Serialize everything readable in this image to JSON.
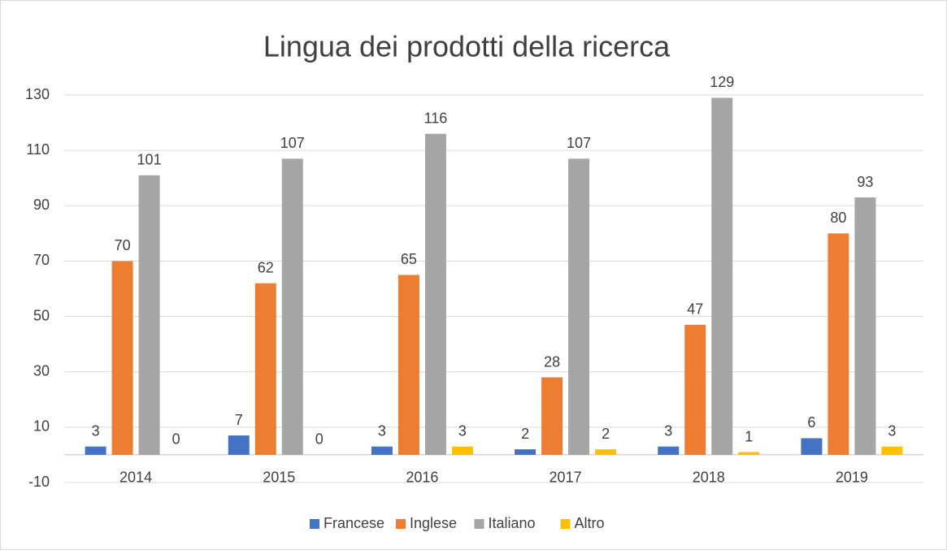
{
  "chart_data": {
    "type": "bar",
    "title": "Lingua dei prodotti della ricerca",
    "categories": [
      "2014",
      "2015",
      "2016",
      "2017",
      "2018",
      "2019"
    ],
    "series": [
      {
        "name": "Francese",
        "color": "#4472c4",
        "values": [
          3,
          7,
          3,
          2,
          3,
          6
        ]
      },
      {
        "name": "Inglese",
        "color": "#ed7d31",
        "values": [
          70,
          62,
          65,
          28,
          47,
          80
        ]
      },
      {
        "name": "Italiano",
        "color": "#a5a5a5",
        "values": [
          101,
          107,
          116,
          107,
          129,
          93
        ]
      },
      {
        "name": "Altro",
        "color": "#ffc000",
        "values": [
          0,
          0,
          3,
          2,
          1,
          3
        ]
      }
    ],
    "ylim": [
      -10,
      130
    ],
    "yticks": [
      -10,
      10,
      30,
      50,
      70,
      90,
      110,
      130
    ],
    "grid": true,
    "legend": "bottom"
  }
}
